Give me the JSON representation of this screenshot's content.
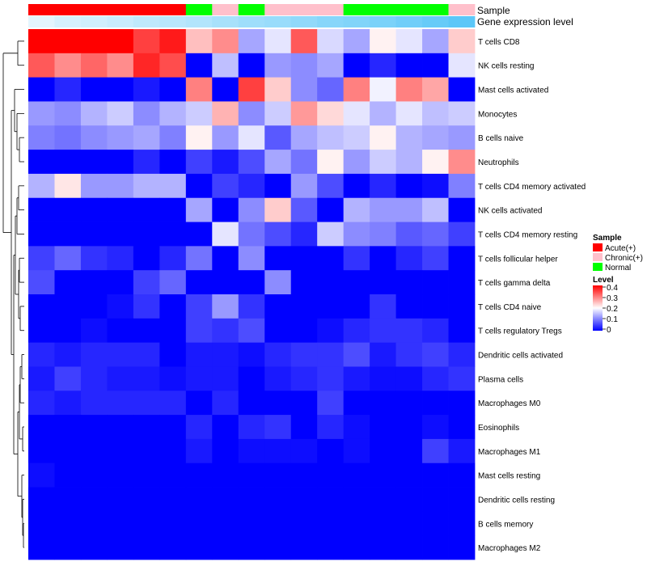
{
  "chart_data": {
    "type": "heatmap",
    "annotation_labels": {
      "sample": "Sample",
      "gene_expression": "Gene expression level"
    },
    "sample_annotation": [
      "Acute(+)",
      "Acute(+)",
      "Acute(+)",
      "Acute(+)",
      "Acute(+)",
      "Acute(+)",
      "Normal",
      "Chronic(+)",
      "Normal",
      "Chronic(+)",
      "Chronic(+)",
      "Chronic(+)",
      "Normal",
      "Normal",
      "Normal",
      "Normal",
      "Chronic(+)"
    ],
    "gene_expression_annotation": [
      0.1,
      0.18,
      0.22,
      0.26,
      0.32,
      0.36,
      0.4,
      0.46,
      0.52,
      0.56,
      0.6,
      0.66,
      0.7,
      0.74,
      0.8,
      0.86,
      0.92
    ],
    "rows": [
      "T cells CD8",
      "NK cells resting",
      "Mast cells activated",
      "Monocytes",
      "B cells naive",
      "Neutrophils",
      "T cells CD4 memory activated",
      "NK cells activated",
      "T cells CD4 memory resting",
      "T cells follicular helper",
      "T cells gamma delta",
      "T cells CD4 naive",
      "T cells regulatory  Tregs",
      "Dendritic cells activated",
      "Plasma cells",
      "Macrophages M0",
      "Eosinophils",
      "Macrophages M1",
      "Mast cells resting",
      "Dendritic cells resting",
      "B cells memory",
      "Macrophages M2"
    ],
    "values": [
      [
        0.4,
        0.4,
        0.4,
        0.4,
        0.35,
        0.38,
        0.25,
        0.29,
        0.13,
        0.18,
        0.33,
        0.17,
        0.13,
        0.21,
        0.18,
        0.13,
        0.24
      ],
      [
        0.33,
        0.29,
        0.32,
        0.29,
        0.37,
        0.34,
        0.0,
        0.15,
        0.0,
        0.12,
        0.11,
        0.13,
        0.0,
        0.03,
        0.0,
        0.0,
        0.18
      ],
      [
        0.0,
        0.03,
        0.0,
        0.0,
        0.02,
        0.0,
        0.3,
        0.0,
        0.35,
        0.24,
        0.11,
        0.08,
        0.3,
        0.19,
        0.3,
        0.27,
        0.0
      ],
      [
        0.12,
        0.11,
        0.14,
        0.16,
        0.11,
        0.14,
        0.16,
        0.26,
        0.11,
        0.16,
        0.28,
        0.23,
        0.18,
        0.14,
        0.18,
        0.15,
        0.16
      ],
      [
        0.1,
        0.09,
        0.11,
        0.12,
        0.13,
        0.1,
        0.21,
        0.12,
        0.18,
        0.07,
        0.13,
        0.15,
        0.16,
        0.21,
        0.14,
        0.13,
        0.12
      ],
      [
        0.0,
        0.0,
        0.0,
        0.0,
        0.03,
        0.0,
        0.05,
        0.02,
        0.06,
        0.13,
        0.09,
        0.21,
        0.12,
        0.16,
        0.14,
        0.21,
        0.29
      ],
      [
        0.14,
        0.22,
        0.12,
        0.12,
        0.14,
        0.14,
        0.0,
        0.05,
        0.03,
        0.0,
        0.12,
        0.06,
        0.0,
        0.03,
        0.0,
        0.01,
        0.1
      ],
      [
        0.0,
        0.0,
        0.0,
        0.0,
        0.0,
        0.0,
        0.13,
        0.0,
        0.11,
        0.24,
        0.07,
        0.0,
        0.14,
        0.12,
        0.12,
        0.15,
        0.0
      ],
      [
        0.0,
        0.0,
        0.0,
        0.0,
        0.0,
        0.0,
        0.0,
        0.18,
        0.09,
        0.06,
        0.03,
        0.16,
        0.11,
        0.1,
        0.07,
        0.08,
        0.05
      ],
      [
        0.05,
        0.08,
        0.04,
        0.03,
        0.0,
        0.03,
        0.09,
        0.0,
        0.11,
        0.0,
        0.0,
        0.0,
        0.04,
        0.0,
        0.03,
        0.05,
        0.0
      ],
      [
        0.06,
        0.0,
        0.0,
        0.0,
        0.05,
        0.08,
        0.0,
        0.0,
        0.0,
        0.11,
        0.0,
        0.0,
        0.0,
        0.0,
        0.0,
        0.0,
        0.0
      ],
      [
        0.0,
        0.0,
        0.0,
        0.01,
        0.04,
        0.0,
        0.05,
        0.12,
        0.04,
        0.0,
        0.0,
        0.0,
        0.0,
        0.04,
        0.0,
        0.0,
        0.0
      ],
      [
        0.0,
        0.0,
        0.01,
        0.0,
        0.0,
        0.0,
        0.05,
        0.04,
        0.06,
        0.0,
        0.0,
        0.01,
        0.03,
        0.04,
        0.04,
        0.03,
        0.0
      ],
      [
        0.03,
        0.02,
        0.03,
        0.03,
        0.03,
        0.0,
        0.02,
        0.02,
        0.01,
        0.03,
        0.04,
        0.04,
        0.06,
        0.02,
        0.04,
        0.05,
        0.03
      ],
      [
        0.02,
        0.05,
        0.03,
        0.02,
        0.02,
        0.01,
        0.02,
        0.02,
        0.0,
        0.02,
        0.03,
        0.04,
        0.02,
        0.01,
        0.01,
        0.03,
        0.04
      ],
      [
        0.03,
        0.02,
        0.03,
        0.03,
        0.03,
        0.03,
        0.0,
        0.03,
        0.0,
        0.0,
        0.0,
        0.05,
        0.0,
        0.0,
        0.0,
        0.0,
        0.0
      ],
      [
        0.0,
        0.0,
        0.0,
        0.0,
        0.0,
        0.0,
        0.03,
        0.0,
        0.03,
        0.04,
        0.0,
        0.03,
        0.01,
        0.0,
        0.0,
        0.01,
        0.0
      ],
      [
        0.0,
        0.0,
        0.0,
        0.0,
        0.0,
        0.0,
        0.02,
        0.0,
        0.01,
        0.01,
        0.01,
        0.0,
        0.01,
        0.0,
        0.0,
        0.05,
        0.02
      ],
      [
        0.01,
        0.0,
        0.0,
        0.0,
        0.0,
        0.0,
        0.0,
        0.0,
        0.0,
        0.0,
        0.0,
        0.0,
        0.0,
        0.0,
        0.0,
        0.0,
        0.0
      ],
      [
        0.0,
        0.0,
        0.0,
        0.0,
        0.0,
        0.0,
        0.0,
        0.0,
        0.0,
        0.0,
        0.0,
        0.0,
        0.0,
        0.0,
        0.0,
        0.0,
        0.0
      ],
      [
        0.0,
        0.0,
        0.0,
        0.0,
        0.0,
        0.0,
        0.0,
        0.0,
        0.0,
        0.0,
        0.0,
        0.0,
        0.0,
        0.0,
        0.0,
        0.0,
        0.0
      ],
      [
        0.0,
        0.0,
        0.0,
        0.0,
        0.0,
        0.0,
        0.0,
        0.0,
        0.0,
        0.0,
        0.0,
        0.0,
        0.0,
        0.0,
        0.0,
        0.0,
        0.0
      ]
    ],
    "scale": {
      "min": 0,
      "max": 0.4,
      "colors": [
        "#0000ff",
        "#ffffff",
        "#ff0000"
      ]
    },
    "legend_sample": {
      "title": "Sample",
      "items": [
        {
          "label": "Acute(+)",
          "color": "#ff0000"
        },
        {
          "label": "Chronic(+)",
          "color": "#ffc0cb"
        },
        {
          "label": "Normal",
          "color": "#00ff00"
        }
      ]
    },
    "legend_level": {
      "title": "Level",
      "ticks": [
        {
          "label": "0.4",
          "value": 0.4
        },
        {
          "label": "0.3",
          "value": 0.3
        },
        {
          "label": "0.2",
          "value": 0.2
        },
        {
          "label": "0.1",
          "value": 0.1
        },
        {
          "label": "0",
          "value": 0
        }
      ]
    },
    "annotation_gradient": [
      "#f4fbff",
      "#4fc3f7"
    ],
    "dendrogram": "row-clustering"
  }
}
